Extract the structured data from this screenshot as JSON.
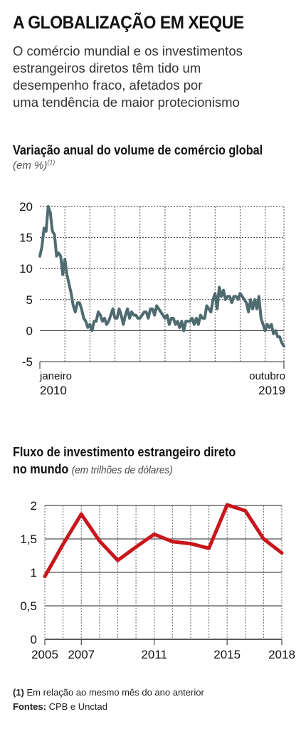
{
  "header": {
    "title": "A GLOBALIZAÇÃO EM XEQUE",
    "subtitle_lines": [
      "O comércio mundial e os investimentos",
      "estrangeiros diretos têm tido um",
      "desempenho fraco, afetados por",
      "uma tendência de maior protecionismo"
    ]
  },
  "chart1": {
    "title": "Variação anual do volume de comércio global",
    "unit": "(em %)",
    "unit_note": "(1)",
    "x_start_label": [
      "janeiro",
      "2010"
    ],
    "x_end_label": [
      "outubro",
      "2019"
    ],
    "y_ticks": [
      "20",
      "15",
      "10",
      "5",
      "0",
      "-5"
    ]
  },
  "chart2": {
    "title_line1": "Fluxo de investimento estrangeiro direto",
    "title_line2_bold": "no mundo",
    "title_line2_unit": "(em trilhões de dólares)",
    "y_ticks": [
      "2",
      "1,5",
      "1",
      "0,5",
      "0"
    ],
    "x_ticks": [
      "2005",
      "2007",
      "2011",
      "2015",
      "2018"
    ]
  },
  "footer": {
    "note_marker": "(1)",
    "note_text": "Em relação ao mesmo mês do ano anterior",
    "sources_label": "Fontes:",
    "sources_text": "CPB e Unctad"
  },
  "colors": {
    "line1": "#4f6b70",
    "line2": "#c8161d",
    "grid": "#222222"
  },
  "chart_data": [
    {
      "type": "line",
      "title": "Variação anual do volume de comércio global",
      "ylabel": "(em %)",
      "ylim": [
        -5,
        20
      ],
      "x_range": [
        "2010-01",
        "2019-10"
      ],
      "series": [
        {
          "values": [
            12.0,
            13.5,
            16.5,
            16.0,
            20.0,
            19.0,
            16.0,
            15.5,
            12.0,
            12.5,
            12.0,
            9.0,
            11.5,
            9.0,
            7.5,
            6.0,
            4.0,
            3.0,
            4.5,
            4.5,
            3.5,
            2.0,
            1.5,
            0.5,
            1.0,
            0.0,
            1.5,
            1.5,
            3.0,
            2.5,
            1.5,
            2.0,
            1.0,
            1.5,
            2.5,
            3.5,
            2.0,
            2.0,
            3.5,
            2.5,
            1.0,
            2.5,
            3.5,
            2.0,
            3.0,
            2.5,
            2.5,
            2.0,
            2.0,
            2.5,
            3.0,
            3.0,
            2.0,
            3.5,
            3.5,
            2.5,
            4.0,
            3.5,
            3.0,
            2.5,
            2.0,
            2.5,
            1.0,
            2.0,
            2.0,
            1.0,
            1.5,
            0.5,
            1.5,
            0.0,
            1.5,
            1.5,
            1.5,
            2.0,
            1.0,
            2.0,
            1.0,
            2.5,
            2.0,
            2.0,
            4.0,
            3.5,
            3.0,
            5.0,
            6.0,
            3.5,
            7.0,
            5.5,
            6.5,
            5.0,
            5.5,
            5.5,
            4.5,
            5.5,
            5.5,
            5.0,
            6.0,
            5.5,
            5.0,
            4.5,
            3.0,
            5.0,
            3.5,
            5.0,
            3.5,
            5.5,
            2.0,
            1.0,
            0.0,
            1.0,
            0.5,
            1.0,
            -0.5,
            0.0,
            -1.0,
            -1.0,
            -2.0,
            -2.5
          ]
        }
      ]
    },
    {
      "type": "line",
      "title": "Fluxo de investimento estrangeiro direto no mundo",
      "ylabel": "(em trilhões de dólares)",
      "ylim": [
        0,
        2
      ],
      "x": [
        2005,
        2006,
        2007,
        2008,
        2009,
        2010,
        2011,
        2012,
        2013,
        2014,
        2015,
        2016,
        2017,
        2018
      ],
      "series": [
        {
          "values": [
            0.94,
            1.42,
            1.87,
            1.47,
            1.18,
            1.38,
            1.57,
            1.46,
            1.43,
            1.36,
            2.01,
            1.92,
            1.5,
            1.29
          ]
        }
      ]
    }
  ]
}
